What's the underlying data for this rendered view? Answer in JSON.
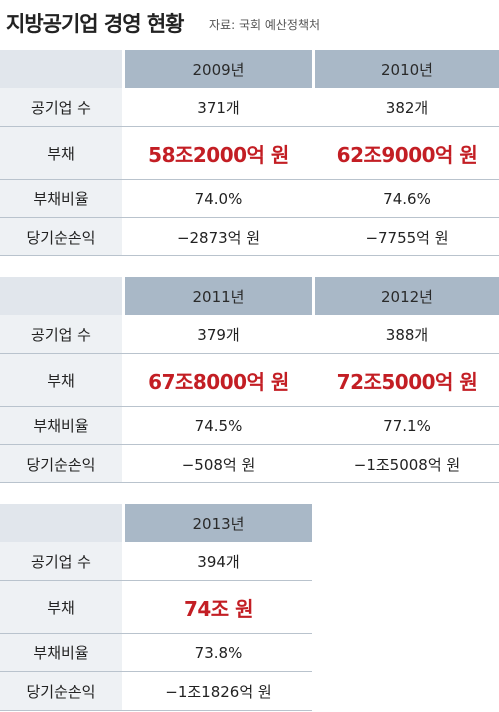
{
  "title": "지방공기업 경영 현황",
  "source": "자료: 국회 예산정책처",
  "row_labels": {
    "count": "공기업 수",
    "debt": "부채",
    "debt_ratio": "부채비율",
    "net_income": "당기순손익"
  },
  "blocks": [
    {
      "years": [
        "2009년",
        "2010년"
      ],
      "count": [
        "371개",
        "382개"
      ],
      "debt": [
        "58조2000억 원",
        "62조9000억 원"
      ],
      "debt_ratio": [
        "74.0%",
        "74.6%"
      ],
      "net_income": [
        "−2873억 원",
        "−7755억 원"
      ]
    },
    {
      "years": [
        "2011년",
        "2012년"
      ],
      "count": [
        "379개",
        "388개"
      ],
      "debt": [
        "67조8000억 원",
        "72조5000억 원"
      ],
      "debt_ratio": [
        "74.5%",
        "77.1%"
      ],
      "net_income": [
        "−508억 원",
        "−1조5008억 원"
      ]
    },
    {
      "years": [
        "2013년"
      ],
      "count": [
        "394개"
      ],
      "debt": [
        "74조 원"
      ],
      "debt_ratio": [
        "73.8%"
      ],
      "net_income": [
        "−1조1826억 원"
      ]
    }
  ],
  "colors": {
    "header_year_bg": "#a9b8c7",
    "header_label_bg": "#e1e6ec",
    "label_cell_bg": "#eef1f4",
    "debt_text": "#c31e24"
  }
}
